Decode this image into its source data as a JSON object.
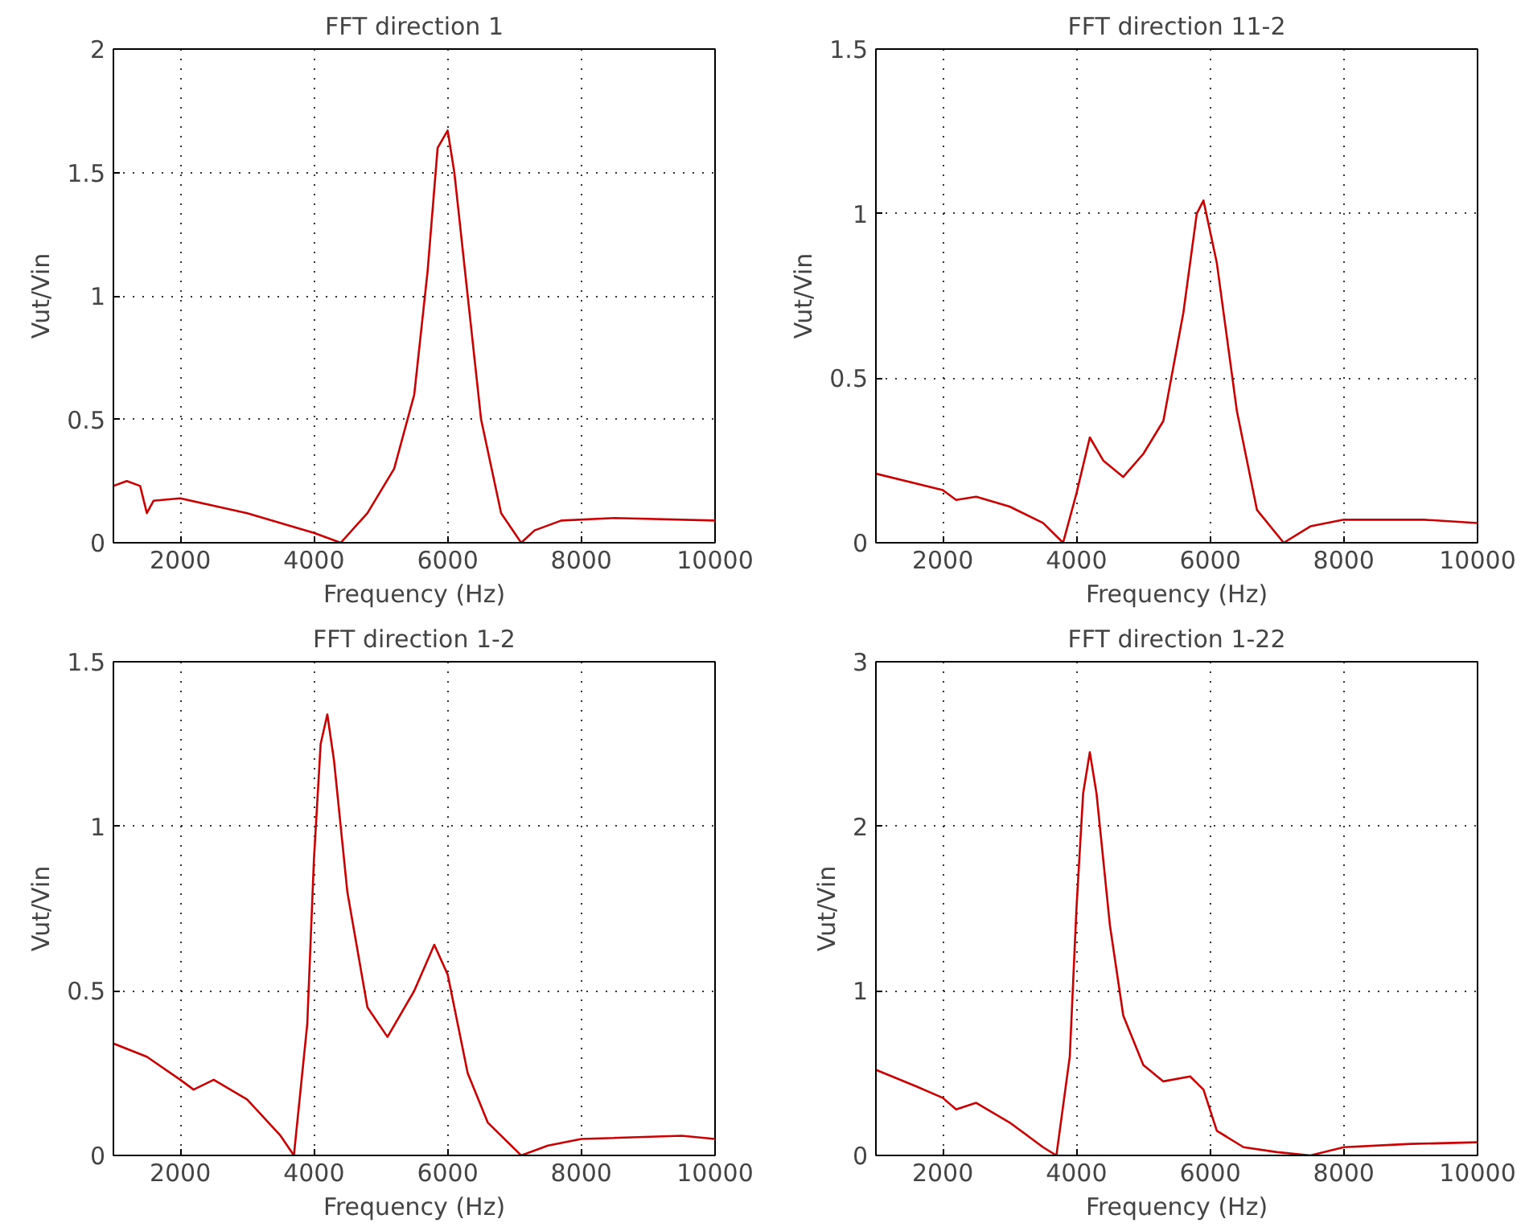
{
  "chart_data": [
    {
      "type": "line",
      "title": "FFT direction 1",
      "xlabel": "Frequency (Hz)",
      "ylabel": "Vut/Vin",
      "xlim": [
        1000,
        10000
      ],
      "xticks": [
        2000,
        4000,
        6000,
        8000,
        10000
      ],
      "ylim": [
        0,
        2
      ],
      "yticks": [
        0,
        0.5,
        1,
        1.5,
        2
      ],
      "grid": true,
      "series": [
        {
          "color": "#cc0000",
          "x": [
            1000,
            1200,
            1400,
            1500,
            1600,
            2000,
            2500,
            3000,
            3500,
            4000,
            4400,
            4800,
            5200,
            5500,
            5700,
            5850,
            6000,
            6100,
            6300,
            6500,
            6800,
            7100,
            7300,
            7700,
            8500,
            10000
          ],
          "values": [
            0.23,
            0.25,
            0.23,
            0.12,
            0.17,
            0.18,
            0.15,
            0.12,
            0.08,
            0.04,
            0.0,
            0.12,
            0.3,
            0.6,
            1.1,
            1.6,
            1.67,
            1.5,
            1.0,
            0.5,
            0.12,
            0.0,
            0.05,
            0.09,
            0.1,
            0.09
          ]
        }
      ]
    },
    {
      "type": "line",
      "title": "FFT direction 11-2",
      "xlabel": "Frequency (Hz)",
      "ylabel": "Vut/Vin",
      "xlim": [
        1000,
        10000
      ],
      "xticks": [
        2000,
        4000,
        6000,
        8000,
        10000
      ],
      "ylim": [
        0,
        1.5
      ],
      "yticks": [
        0,
        0.5,
        1,
        1.5
      ],
      "grid": true,
      "series": [
        {
          "color": "#cc0000",
          "x": [
            1000,
            2000,
            2200,
            2500,
            3000,
            3500,
            3800,
            4000,
            4200,
            4400,
            4700,
            5000,
            5300,
            5600,
            5800,
            5900,
            6100,
            6400,
            6700,
            7100,
            7500,
            8000,
            9200,
            10000
          ],
          "values": [
            0.21,
            0.16,
            0.13,
            0.14,
            0.11,
            0.06,
            0.0,
            0.15,
            0.32,
            0.25,
            0.2,
            0.27,
            0.37,
            0.7,
            1.0,
            1.04,
            0.85,
            0.4,
            0.1,
            0.0,
            0.05,
            0.07,
            0.07,
            0.06
          ]
        }
      ]
    },
    {
      "type": "line",
      "title": "FFT direction 1-2",
      "xlabel": "Frequency (Hz)",
      "ylabel": "Vut/Vin",
      "xlim": [
        1000,
        10000
      ],
      "xticks": [
        2000,
        4000,
        6000,
        8000,
        10000
      ],
      "ylim": [
        0,
        1.5
      ],
      "yticks": [
        0,
        0.5,
        1,
        1.5
      ],
      "grid": true,
      "series": [
        {
          "color": "#cc0000",
          "x": [
            1000,
            1500,
            2000,
            2200,
            2500,
            3000,
            3500,
            3700,
            3900,
            4000,
            4100,
            4200,
            4300,
            4500,
            4800,
            5100,
            5500,
            5800,
            6000,
            6300,
            6600,
            7100,
            7500,
            8000,
            9500,
            10000
          ],
          "values": [
            0.34,
            0.3,
            0.23,
            0.2,
            0.23,
            0.17,
            0.06,
            0.0,
            0.4,
            0.9,
            1.25,
            1.34,
            1.2,
            0.8,
            0.45,
            0.36,
            0.5,
            0.64,
            0.55,
            0.25,
            0.1,
            0.0,
            0.03,
            0.05,
            0.06,
            0.05
          ]
        }
      ]
    },
    {
      "type": "line",
      "title": "FFT direction 1-22",
      "xlabel": "Frequency (Hz)",
      "ylabel": "Vut/Vin",
      "xlim": [
        1000,
        10000
      ],
      "xticks": [
        2000,
        4000,
        6000,
        8000,
        10000
      ],
      "ylim": [
        0,
        3
      ],
      "yticks": [
        0,
        1,
        2,
        3
      ],
      "grid": true,
      "series": [
        {
          "color": "#cc0000",
          "x": [
            1000,
            1300,
            1600,
            2000,
            2200,
            2500,
            3000,
            3500,
            3700,
            3900,
            4000,
            4100,
            4200,
            4300,
            4500,
            4700,
            5000,
            5300,
            5700,
            5900,
            6100,
            6500,
            7000,
            7500,
            8000,
            9000,
            10000
          ],
          "values": [
            0.52,
            0.47,
            0.42,
            0.35,
            0.28,
            0.32,
            0.2,
            0.05,
            0.0,
            0.6,
            1.5,
            2.2,
            2.45,
            2.2,
            1.4,
            0.85,
            0.55,
            0.45,
            0.48,
            0.4,
            0.15,
            0.05,
            0.02,
            0.0,
            0.05,
            0.07,
            0.08
          ]
        }
      ]
    }
  ]
}
